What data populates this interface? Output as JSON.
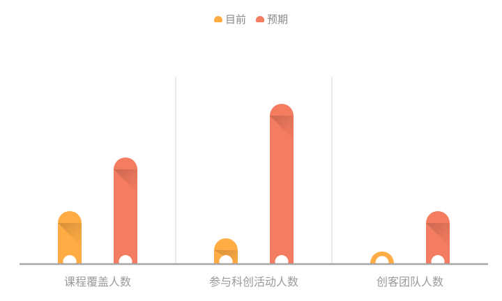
{
  "chart_data": {
    "type": "bar",
    "title": "",
    "xlabel": "",
    "ylabel": "",
    "categories": [
      "课程覆盖人数",
      "参与科创活动人数",
      "创客团队人数"
    ],
    "series": [
      {
        "name": "目前",
        "color": "#ffac45",
        "values": [
          76,
          37,
          18
        ]
      },
      {
        "name": "预期",
        "color": "#f47c60",
        "values": [
          153,
          230,
          76
        ]
      }
    ],
    "ylim": [
      0,
      268
    ],
    "legend": "top-center",
    "grid": false
  }
}
